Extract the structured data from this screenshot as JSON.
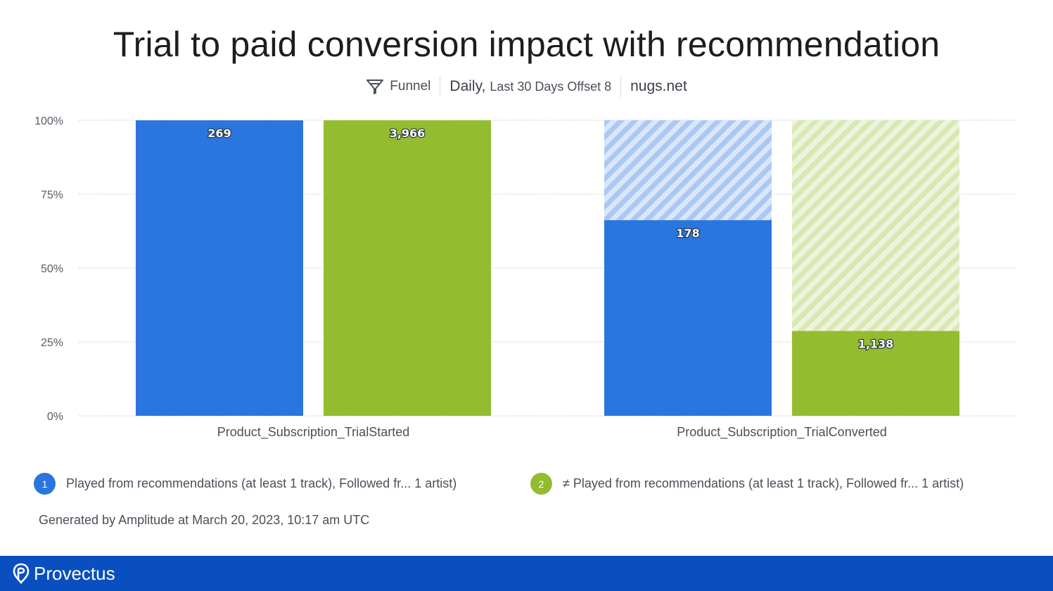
{
  "title": "Trial to paid conversion impact with recommendation",
  "subtitle": {
    "chart_kind": "Funnel",
    "interval": "Daily,",
    "range": "Last 30 Days Offset 8",
    "project": "nugs.net",
    "icon": "funnel-icon"
  },
  "chart_data": {
    "type": "bar",
    "categories": [
      "Product_Subscription_TrialStarted",
      "Product_Subscription_TrialConverted"
    ],
    "series": [
      {
        "name": "Played from recommendations (at least 1 track), Followed fr...  1 artist)",
        "color": "#2a76de",
        "percent": [
          100,
          66.2
        ],
        "labels": [
          "269",
          "178"
        ]
      },
      {
        "name": "≠ Played from recommendations (at least 1 track), Followed fr... 1 artist)",
        "color": "#93bc30",
        "percent": [
          100,
          28.7
        ],
        "labels": [
          "3,966",
          "1,138"
        ]
      }
    ],
    "ylim": [
      0,
      100
    ],
    "yticks": [
      "0%",
      "25%",
      "50%",
      "75%",
      "100%"
    ],
    "ytick_values": [
      0,
      25,
      50,
      75,
      100
    ],
    "dropoff_fill": "hatched",
    "grid": true
  },
  "legend": [
    {
      "badge": "1",
      "label": "Played from recommendations (at least 1 track), Followed fr...  1 artist)",
      "color": "#2a76de"
    },
    {
      "badge": "2",
      "label": "≠ Played from recommendations (at least 1 track), Followed fr... 1 artist)",
      "color": "#93bc30"
    }
  ],
  "footer_note": "Generated by Amplitude at March 20, 2023, 10:17 am UTC",
  "brand": {
    "name": "Provectus",
    "bar_color": "#0a4fbf"
  }
}
